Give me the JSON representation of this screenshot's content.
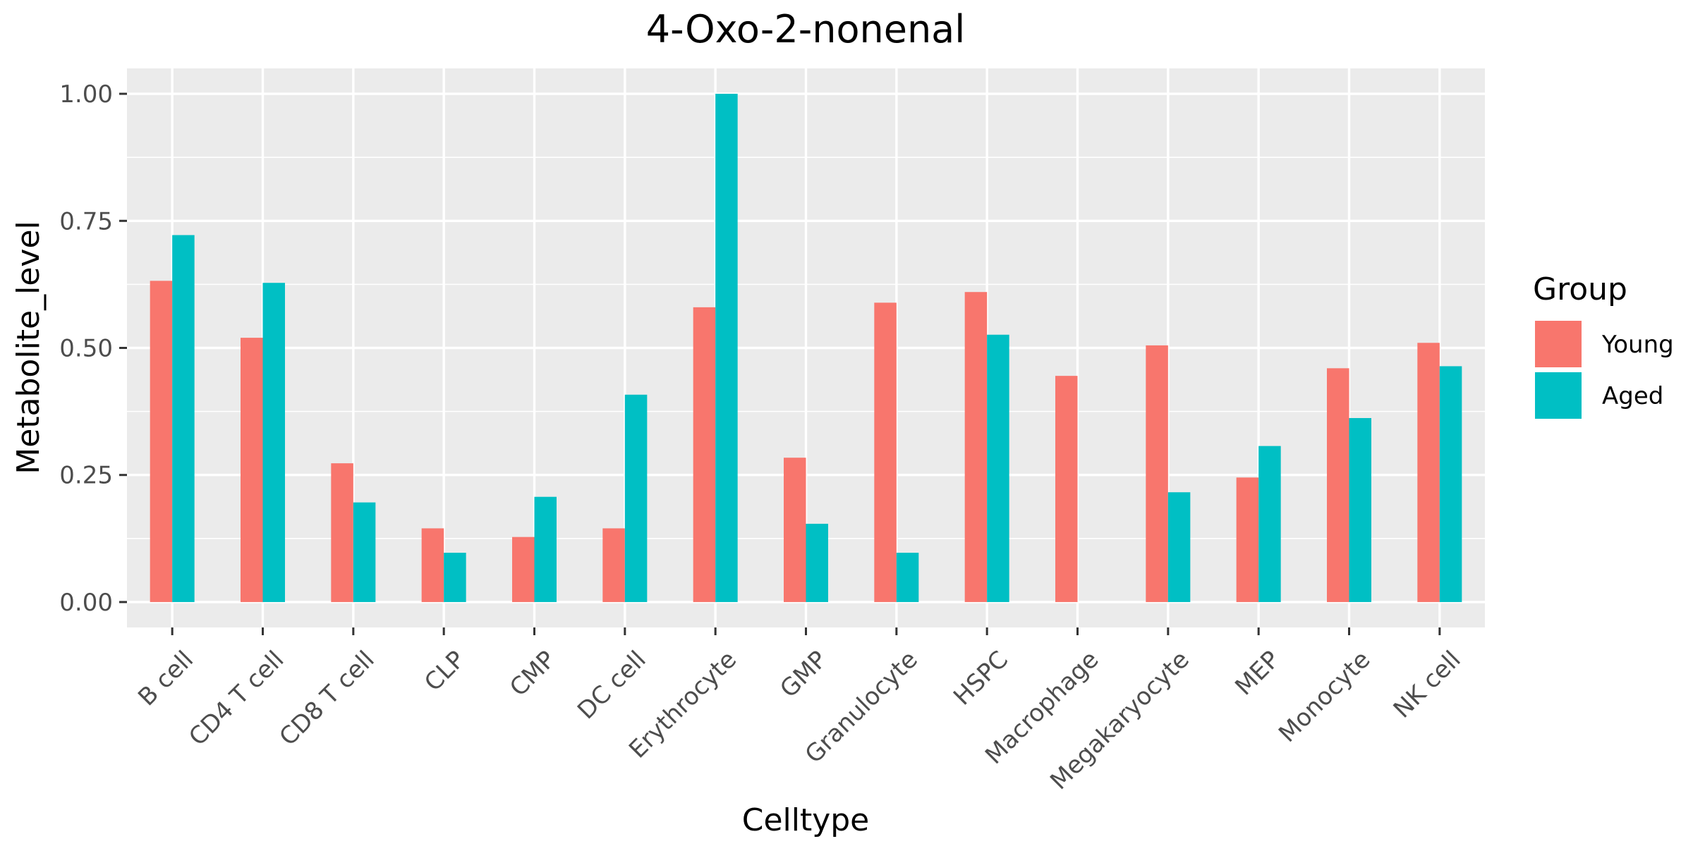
{
  "chart_data": {
    "type": "bar",
    "title": "4-Oxo-2-nonenal",
    "xlabel": "Celltype",
    "ylabel": "Metabolite_level",
    "ylim": [
      -0.05,
      1.05
    ],
    "yticks": [
      0.0,
      0.25,
      0.5,
      0.75,
      1.0
    ],
    "ytick_labels": [
      "0.00",
      "0.25",
      "0.50",
      "0.75",
      "1.00"
    ],
    "grid": true,
    "legend": {
      "title": "Group",
      "position": "right"
    },
    "categories": [
      "B cell",
      "CD4 T cell",
      "CD8 T cell",
      "CLP",
      "CMP",
      "DC cell",
      "Erythrocyte",
      "GMP",
      "Granulocyte",
      "HSPC",
      "Macrophage",
      "Megakaryocyte",
      "MEP",
      "Monocyte",
      "NK cell"
    ],
    "series": [
      {
        "name": "Young",
        "color": "#F8766D",
        "values": [
          0.632,
          0.52,
          0.273,
          0.145,
          0.128,
          0.145,
          0.58,
          0.284,
          0.589,
          0.61,
          0.445,
          0.505,
          0.245,
          0.46,
          0.51
        ]
      },
      {
        "name": "Aged",
        "color": "#00BFC4",
        "values": [
          0.722,
          0.628,
          0.196,
          0.097,
          0.207,
          0.408,
          1.0,
          0.154,
          0.097,
          0.526,
          0.0,
          0.216,
          0.307,
          0.362,
          0.464
        ]
      }
    ],
    "colors": {
      "panel": "#EBEBEB",
      "grid": "#FFFFFF",
      "tick": "#333333"
    }
  }
}
